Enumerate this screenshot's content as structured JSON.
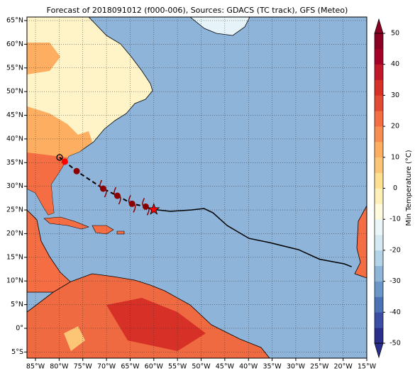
{
  "map": {
    "title": "Forecast of 2018091012 (f000-006), Sources: GDACS (TC track), GFS (Meteo)",
    "xlim": [
      -86.8,
      -15
    ],
    "ylim": [
      -6.3,
      65.75
    ],
    "xticks": [
      {
        "value": -85,
        "label": "85°W"
      },
      {
        "value": -80,
        "label": "80°W"
      },
      {
        "value": -75,
        "label": "75°W"
      },
      {
        "value": -70,
        "label": "70°W"
      },
      {
        "value": -65,
        "label": "65°W"
      },
      {
        "value": -60,
        "label": "60°W"
      },
      {
        "value": -55,
        "label": "55°W"
      },
      {
        "value": -50,
        "label": "50°W"
      },
      {
        "value": -45,
        "label": "45°W"
      },
      {
        "value": -40,
        "label": "40°W"
      },
      {
        "value": -35,
        "label": "35°W"
      },
      {
        "value": -30,
        "label": "30°W"
      },
      {
        "value": -25,
        "label": "25°W"
      },
      {
        "value": -20,
        "label": "20°W"
      },
      {
        "value": -15,
        "label": "15°W"
      }
    ],
    "yticks": [
      {
        "value": 65,
        "label": "65°N"
      },
      {
        "value": 60,
        "label": "60°N"
      },
      {
        "value": 55,
        "label": "55°N"
      },
      {
        "value": 50,
        "label": "50°N"
      },
      {
        "value": 45,
        "label": "45°N"
      },
      {
        "value": 40,
        "label": "40°N"
      },
      {
        "value": 35,
        "label": "35°N"
      },
      {
        "value": 30,
        "label": "30°N"
      },
      {
        "value": 25,
        "label": "25°N"
      },
      {
        "value": 20,
        "label": "20°N"
      },
      {
        "value": 15,
        "label": "15°N"
      },
      {
        "value": 10,
        "label": "10°N"
      },
      {
        "value": 5,
        "label": "5°N"
      },
      {
        "value": 0,
        "label": "0°"
      },
      {
        "value": -5,
        "label": "5°S"
      }
    ],
    "grid": true,
    "past_track": {
      "color": "#000000",
      "lon": [
        -60,
        -56.5,
        -52,
        -49.4,
        -47.5,
        -44.5,
        -39.9,
        -35.5,
        -29.4,
        -25,
        -19.7,
        -18.2
      ],
      "lat": [
        25.1,
        24.7,
        25,
        25.3,
        24.4,
        21.7,
        19,
        18.1,
        16.6,
        14.6,
        13.6,
        13
      ]
    },
    "current_position": {
      "color": "#ff0000",
      "lon": -60,
      "lat": 25.1
    },
    "forecast_track": {
      "color": "#8b0000",
      "lon": [
        -61.7,
        -64.6,
        -67.7,
        -70.7,
        -76.3,
        -78.8,
        -79.9
      ],
      "lat": [
        25.7,
        26.3,
        28,
        29.5,
        33.2,
        35.2,
        36.1
      ]
    },
    "colorbar": {
      "label": "Min Temperature (°C)",
      "lim": [
        -50,
        50
      ],
      "ticks": [
        50,
        40,
        30,
        20,
        10,
        0,
        -10,
        -20,
        -30,
        -40,
        -50
      ],
      "colors": [
        "#2b2f8c",
        "#3a4fa3",
        "#4a74b5",
        "#6a97c7",
        "#8fb6d9",
        "#b3d3e8",
        "#d4e9f2",
        "#ebf6f9",
        "#fffbde",
        "#fff0b8",
        "#fee090",
        "#fdc677",
        "#fdae61",
        "#f88d52",
        "#f46d43",
        "#e34a33",
        "#d73027",
        "#c0182a",
        "#a50026",
        "#8a0022"
      ]
    }
  }
}
